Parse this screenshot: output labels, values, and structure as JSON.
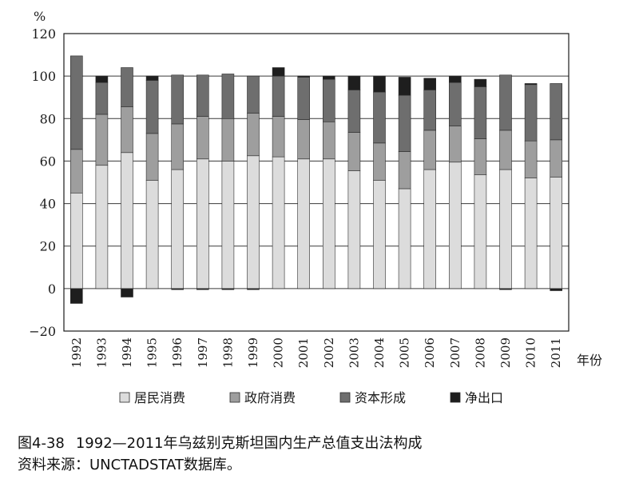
{
  "chart_data": {
    "type": "bar",
    "stacked": true,
    "title": "",
    "xlabel": "年份",
    "ylabel": "%",
    "ylim": [
      -20,
      120
    ],
    "yticks": [
      120,
      100,
      80,
      60,
      40,
      20,
      0,
      -20
    ],
    "ytick_labels": [
      "120",
      "100",
      "80",
      "60",
      "40",
      "20",
      "0",
      "−20"
    ],
    "grid": true,
    "legend_position": "bottom",
    "categories": [
      "1992",
      "1993",
      "1994",
      "1995",
      "1996",
      "1997",
      "1998",
      "1999",
      "2000",
      "2001",
      "2002",
      "2003",
      "2004",
      "2005",
      "2006",
      "2007",
      "2008",
      "2009",
      "2010",
      "2011"
    ],
    "series": [
      {
        "name": "居民消费",
        "color": "#dcdcdc",
        "values": [
          45,
          58,
          64,
          51,
          56,
          61,
          60,
          62.5,
          62,
          61,
          61,
          55.5,
          51,
          47,
          56,
          59.5,
          53.5,
          56,
          52,
          52.5
        ]
      },
      {
        "name": "政府消费",
        "color": "#9e9e9e",
        "values": [
          20.5,
          24,
          21.5,
          22,
          21.5,
          20,
          20,
          20,
          19,
          18.5,
          17.5,
          18,
          17.5,
          17.5,
          18.5,
          17,
          17,
          18.5,
          17.5,
          17.5
        ]
      },
      {
        "name": "资本形成",
        "color": "#6e6e6e",
        "values": [
          44,
          15,
          18.5,
          25,
          23,
          19.5,
          21,
          17.5,
          19,
          20,
          20,
          20,
          24,
          26.5,
          19,
          20.5,
          24.5,
          26,
          26.5,
          26.5
        ]
      },
      {
        "name": "净出口",
        "color": "#1e1e1e",
        "values": [
          -7,
          3,
          -4,
          2,
          -0.5,
          -0.5,
          -0.5,
          -0.5,
          4,
          0.5,
          1.5,
          6.5,
          7.5,
          8.5,
          5.5,
          3,
          3.5,
          -0.5,
          0.5,
          -1
        ]
      }
    ]
  },
  "caption": {
    "figure_number": "图4-38",
    "figure_title": "1992—2011年乌兹别克斯坦国内生产总值支出法构成",
    "source": "资料来源：UNCTADSTAT数据库。"
  }
}
